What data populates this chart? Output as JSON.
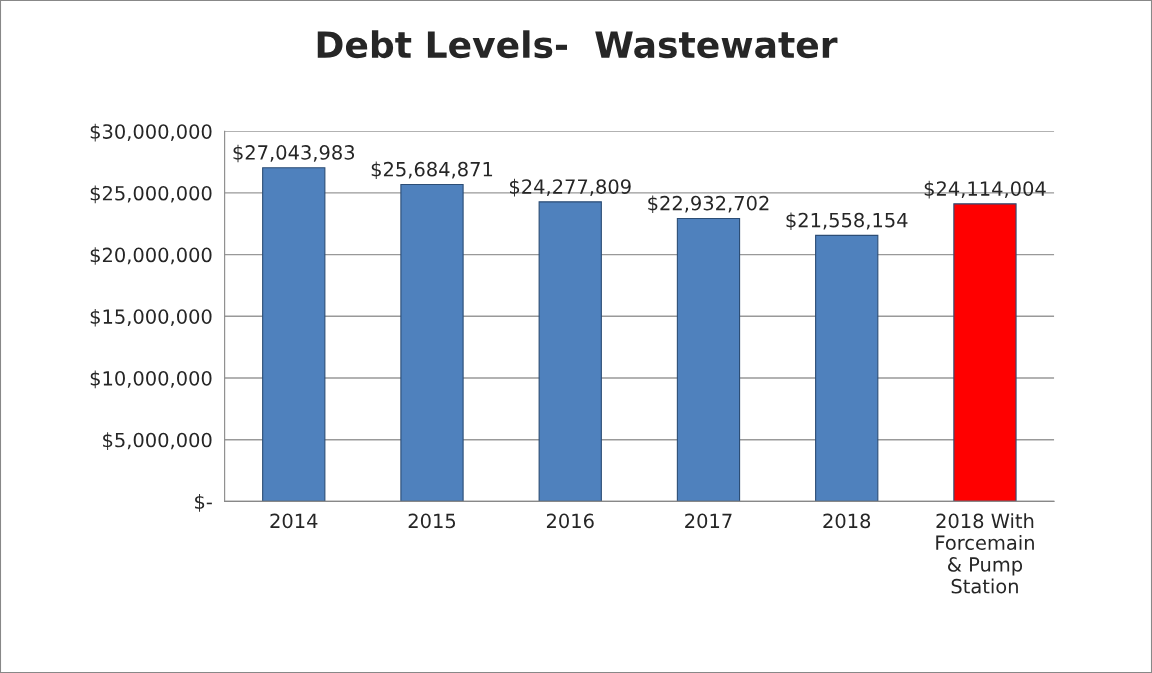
{
  "chart_data": {
    "type": "bar",
    "title": "Debt Levels-  Wastewater",
    "categories": [
      "2014",
      "2015",
      "2016",
      "2017",
      "2018",
      "2018 With\nForcemain\n& Pump\nStation"
    ],
    "values": [
      27043983,
      25684871,
      24277809,
      22932702,
      21558154,
      24114004
    ],
    "colors": [
      "#4f81bd",
      "#4f81bd",
      "#4f81bd",
      "#4f81bd",
      "#4f81bd",
      "#ff0000"
    ],
    "value_labels": [
      "$27,043,983",
      "$25,684,871",
      "$24,277,809",
      "$22,932,702",
      "$21,558,154",
      "$24,114,004"
    ],
    "ylim": [
      0,
      30000000
    ],
    "yticks": [
      {
        "value": 0,
        "label": "$-"
      },
      {
        "value": 5000000,
        "label": "$5,000,000"
      },
      {
        "value": 10000000,
        "label": "$10,000,000"
      },
      {
        "value": 15000000,
        "label": "$15,000,000"
      },
      {
        "value": 20000000,
        "label": "$20,000,000"
      },
      {
        "value": 25000000,
        "label": "$25,000,000"
      },
      {
        "value": 30000000,
        "label": "$30,000,000"
      }
    ],
    "grid": "y",
    "legend": false
  }
}
